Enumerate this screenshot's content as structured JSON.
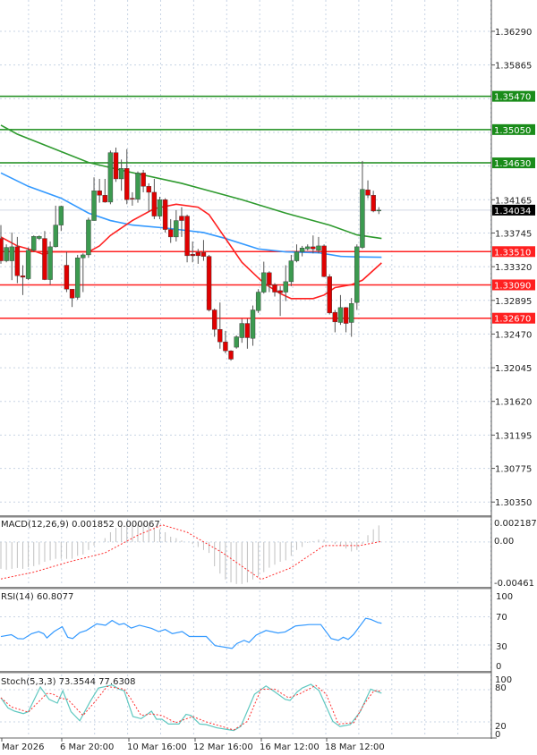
{
  "chart_data": {
    "type": "candlestick",
    "symbol_timeframe_hidden": false,
    "price_axis": {
      "ticks": [
        "1.36290",
        "1.35865",
        "1.34165",
        "1.33745",
        "1.33320",
        "1.32895",
        "1.32470",
        "1.32045",
        "1.31620",
        "1.31195",
        "1.30775",
        "1.30350"
      ],
      "range": [
        1.3005,
        1.3665
      ]
    },
    "current_price": {
      "label": "1.34034",
      "value": 1.34034,
      "color": "#000000"
    },
    "levels": [
      {
        "label": "1.35470",
        "value": 1.3547,
        "color": "#1a8c1a"
      },
      {
        "label": "1.35050",
        "value": 1.3505,
        "color": "#1a8c1a"
      },
      {
        "label": "1.34630",
        "value": 1.3463,
        "color": "#1a8c1a"
      },
      {
        "label": "1.33510",
        "value": 1.3351,
        "color": "#ff2020"
      },
      {
        "label": "1.33090",
        "value": 1.3309,
        "color": "#ff2020"
      },
      {
        "label": "1.32670",
        "value": 1.3267,
        "color": "#ff2020"
      }
    ],
    "ohlc": [
      [
        1.33676,
        1.33845,
        1.33356,
        1.33394
      ],
      [
        1.33394,
        1.33601,
        1.33375,
        1.33563
      ],
      [
        1.33394,
        1.33751,
        1.3315,
        1.33571
      ],
      [
        1.33571,
        1.33695,
        1.33112,
        1.33206
      ],
      [
        1.33206,
        1.33338,
        1.32962,
        1.33187
      ],
      [
        1.33168,
        1.33563,
        1.3315,
        1.33526
      ],
      [
        1.33526,
        1.33714,
        1.33507,
        1.33702
      ],
      [
        1.33676,
        1.33714,
        1.33657,
        1.33702
      ],
      [
        1.33676,
        1.3377,
        1.3315,
        1.33157
      ],
      [
        1.33157,
        1.33638,
        1.33093,
        1.33571
      ],
      [
        1.33571,
        1.3409,
        1.33563,
        1.33845
      ],
      [
        1.33845,
        1.3409,
        1.3377,
        1.34082
      ],
      [
        1.33338,
        1.33507,
        1.32999,
        1.33037
      ],
      [
        1.33037,
        1.33037,
        1.32811,
        1.32924
      ],
      [
        1.32932,
        1.33469,
        1.32905,
        1.33432
      ],
      [
        1.33432,
        1.33488,
        1.32999,
        1.33469
      ],
      [
        1.33469,
        1.33939,
        1.33432,
        1.33909
      ],
      [
        1.33902,
        1.34447,
        1.33902,
        1.34278
      ],
      [
        1.34278,
        1.34428,
        1.34127,
        1.34221
      ],
      [
        1.34221,
        1.34428,
        1.34127,
        1.34135
      ],
      [
        1.34135,
        1.34785,
        1.34108,
        1.34759
      ],
      [
        1.34759,
        1.34823,
        1.3439,
        1.34428
      ],
      [
        1.34428,
        1.34672,
        1.34278,
        1.3456
      ],
      [
        1.3456,
        1.34804,
        1.34108,
        1.34165
      ],
      [
        1.34184,
        1.34259,
        1.3409,
        1.34172
      ],
      [
        1.34172,
        1.34522,
        1.34127,
        1.34503
      ],
      [
        1.34503,
        1.34541,
        1.34259,
        1.34334
      ],
      [
        1.34334,
        1.34372,
        1.34014,
        1.34259
      ],
      [
        1.34259,
        1.34428,
        1.3392,
        1.33958
      ],
      [
        1.33958,
        1.34202,
        1.3392,
        1.34165
      ],
      [
        1.34165,
        1.34184,
        1.33751,
        1.33789
      ],
      [
        1.33789,
        1.3392,
        1.3362,
        1.33695
      ],
      [
        1.33695,
        1.34033,
        1.33638,
        1.33902
      ],
      [
        1.33958,
        1.34071,
        1.33695,
        1.33902
      ],
      [
        1.33958,
        1.33977,
        1.33375,
        1.33458
      ],
      [
        1.33477,
        1.33638,
        1.33375,
        1.33458
      ],
      [
        1.33499,
        1.33544,
        1.33356,
        1.33458
      ],
      [
        1.33499,
        1.33657,
        1.33394,
        1.3345
      ],
      [
        1.3345,
        1.33469,
        1.32755,
        1.32774
      ],
      [
        1.32774,
        1.32792,
        1.32435,
        1.32529
      ],
      [
        1.32529,
        1.32868,
        1.32285,
        1.32371
      ],
      [
        1.32371,
        1.3251,
        1.32228,
        1.32258
      ],
      [
        1.32258,
        1.32266,
        1.32134,
        1.32153
      ],
      [
        1.32304,
        1.32454,
        1.32285,
        1.32435
      ],
      [
        1.32424,
        1.32661,
        1.3236,
        1.32604
      ],
      [
        1.32604,
        1.32661,
        1.32285,
        1.32424
      ],
      [
        1.32416,
        1.3283,
        1.32322,
        1.32774
      ],
      [
        1.32766,
        1.33037,
        1.32736,
        1.32999
      ],
      [
        1.32999,
        1.33383,
        1.3298,
        1.33244
      ],
      [
        1.33244,
        1.33262,
        1.32999,
        1.33093
      ],
      [
        1.33093,
        1.33112,
        1.32943,
        1.32999
      ],
      [
        1.33018,
        1.33074,
        1.32698,
        1.32992
      ],
      [
        1.32999,
        1.33338,
        1.32886,
        1.33131
      ],
      [
        1.33131,
        1.33469,
        1.33074,
        1.33394
      ],
      [
        1.33394,
        1.33601,
        1.33375,
        1.33507
      ],
      [
        1.33507,
        1.33582,
        1.3345,
        1.33556
      ],
      [
        1.33544,
        1.33601,
        1.33526,
        1.33571
      ],
      [
        1.33571,
        1.33714,
        1.33488,
        1.33544
      ],
      [
        1.33526,
        1.33695,
        1.33488,
        1.33582
      ],
      [
        1.33582,
        1.33601,
        1.33187,
        1.33195
      ],
      [
        1.33195,
        1.33225,
        1.32717,
        1.32736
      ],
      [
        1.32744,
        1.32774,
        1.32492,
        1.32623
      ],
      [
        1.32616,
        1.32962,
        1.32586,
        1.32804
      ],
      [
        1.32804,
        1.32811,
        1.32492,
        1.32604
      ],
      [
        1.32616,
        1.32925,
        1.32435,
        1.32856
      ],
      [
        1.32868,
        1.33601,
        1.32774,
        1.33571
      ],
      [
        1.33563,
        1.34654,
        1.33544,
        1.34296
      ],
      [
        1.34289,
        1.34409,
        1.34184,
        1.34221
      ],
      [
        1.34221,
        1.34278,
        1.34007,
        1.34022
      ],
      [
        1.34033,
        1.34071,
        1.33984,
        1.34034
      ]
    ],
    "moving_averages": [
      {
        "color": "#2e9a2e",
        "points": [
          [
            0,
            1.35105
          ],
          [
            3,
            1.34992
          ],
          [
            16,
            1.34635
          ],
          [
            23,
            1.34522
          ],
          [
            33,
            1.34372
          ],
          [
            38,
            1.34278
          ],
          [
            44,
            1.34165
          ],
          [
            52,
            1.33996
          ],
          [
            60,
            1.33845
          ],
          [
            65,
            1.33721
          ],
          [
            69.5,
            1.33676
          ]
        ]
      },
      {
        "color": "#3399ff",
        "points": [
          [
            0,
            1.34503
          ],
          [
            5,
            1.34334
          ],
          [
            11,
            1.34184
          ],
          [
            16,
            1.33996
          ],
          [
            20,
            1.33902
          ],
          [
            24,
            1.33845
          ],
          [
            30,
            1.33808
          ],
          [
            37,
            1.33751
          ],
          [
            41,
            1.33676
          ],
          [
            47,
            1.33544
          ],
          [
            52,
            1.33507
          ],
          [
            58,
            1.33496
          ],
          [
            62,
            1.3345
          ],
          [
            65,
            1.33443
          ],
          [
            69.5,
            1.33439
          ]
        ]
      },
      {
        "color": "#ff2020",
        "points": [
          [
            0,
            1.33695
          ],
          [
            3,
            1.33582
          ],
          [
            5,
            1.33544
          ],
          [
            8,
            1.33469
          ],
          [
            9,
            1.33507
          ],
          [
            12,
            1.33507
          ],
          [
            16,
            1.33507
          ],
          [
            18,
            1.33582
          ],
          [
            20,
            1.33714
          ],
          [
            24,
            1.33902
          ],
          [
            28,
            1.34052
          ],
          [
            32,
            1.34108
          ],
          [
            36,
            1.34071
          ],
          [
            38,
            1.33977
          ],
          [
            41,
            1.33676
          ],
          [
            44,
            1.33375
          ],
          [
            48,
            1.33112
          ],
          [
            51,
            1.32981
          ],
          [
            53,
            1.32917
          ],
          [
            57,
            1.32917
          ],
          [
            59,
            1.32962
          ],
          [
            61,
            1.33056
          ],
          [
            64,
            1.33093
          ],
          [
            66,
            1.33149
          ],
          [
            69.5,
            1.33368
          ]
        ]
      }
    ],
    "time_axis": [
      "Mar 2026",
      "6 Mar 20:00",
      "10 Mar 16:00",
      "12 Mar 16:00",
      "16 Mar 12:00",
      "18 Mar 12:00"
    ],
    "macd": {
      "label": "MACD(12,26,9) 0.001852 0.000067",
      "ticks": [
        "0.002187",
        "0.00",
        "-0.00461"
      ],
      "range": [
        -0.00461,
        0.002187
      ],
      "histogram": [
        -0.003,
        -0.0031,
        -0.003,
        -0.0029,
        -0.003,
        -0.0028,
        -0.0027,
        -0.00254,
        -0.00221,
        -0.00205,
        -0.00188,
        -0.00188,
        -0.00188,
        -0.00188,
        -0.00155,
        -0.00139,
        -0.00089,
        -0.0004,
        0.0,
        0.00043,
        0.00109,
        0.00158,
        0.00175,
        0.00191,
        0.00191,
        0.00208,
        0.00208,
        0.00191,
        0.00158,
        0.00142,
        0.00109,
        0.00059,
        0.00043,
        0.00017,
        0.0,
        -0.00023,
        -0.00056,
        -0.00089,
        -0.00122,
        -0.00271,
        -0.00353,
        -0.00419,
        -0.00452,
        -0.00469,
        -0.00469,
        -0.00452,
        -0.00419,
        -0.00386,
        -0.00337,
        -0.00287,
        -0.00254,
        -0.00221,
        -0.00205,
        -0.00155,
        -0.00089,
        -0.00056,
        -0.0001,
        0.0001,
        0.00026,
        0.00026,
        0.0,
        -0.00023,
        -0.0004,
        -0.00073,
        -0.00106,
        -0.00089,
        -0.00023,
        0.00076,
        0.00142,
        0.00185
      ],
      "signal": [
        [
          0,
          -0.00413
        ],
        [
          6,
          -0.00337
        ],
        [
          12.5,
          -0.00221
        ],
        [
          19,
          -0.00122
        ],
        [
          25,
          0.00076
        ],
        [
          29.5,
          0.00191
        ],
        [
          34,
          0.00109
        ],
        [
          40.5,
          -0.00122
        ],
        [
          47.5,
          -0.00419
        ],
        [
          53,
          -0.00287
        ],
        [
          59,
          -0.0004
        ],
        [
          65.5,
          -0.0004
        ],
        [
          69.5,
          6.7e-05
        ]
      ],
      "histogram_color": "#c0c0c0",
      "signal_color": "#ff3030"
    },
    "rsi": {
      "label": "RSI(14) 60.8077",
      "ticks": [
        "100",
        "70",
        "30",
        "0"
      ],
      "range": [
        0,
        100
      ],
      "color": "#3399ff",
      "points": [
        [
          0,
          42
        ],
        [
          1.9,
          44.6
        ],
        [
          3.1,
          39
        ],
        [
          4.1,
          38.6
        ],
        [
          5.6,
          46
        ],
        [
          6.9,
          49
        ],
        [
          7.8,
          46
        ],
        [
          8.4,
          40
        ],
        [
          9.7,
          49
        ],
        [
          11.2,
          56
        ],
        [
          12.2,
          41
        ],
        [
          13.1,
          39
        ],
        [
          14.4,
          47.6
        ],
        [
          15.6,
          50.6
        ],
        [
          17.5,
          60
        ],
        [
          19.1,
          58
        ],
        [
          20.3,
          64.8
        ],
        [
          21.6,
          59
        ],
        [
          22.5,
          60.5
        ],
        [
          23.8,
          54
        ],
        [
          25.3,
          58
        ],
        [
          27.5,
          53.6
        ],
        [
          28.8,
          49
        ],
        [
          30,
          52
        ],
        [
          31.3,
          46
        ],
        [
          33.1,
          49
        ],
        [
          34.4,
          42
        ],
        [
          37.5,
          42
        ],
        [
          39.1,
          29
        ],
        [
          42.2,
          25
        ],
        [
          43.1,
          32
        ],
        [
          44.4,
          36.5
        ],
        [
          45.3,
          33.5
        ],
        [
          46.6,
          44
        ],
        [
          48.4,
          50.6
        ],
        [
          50.6,
          47
        ],
        [
          51.9,
          48.5
        ],
        [
          53.8,
          57
        ],
        [
          56.3,
          59
        ],
        [
          58.4,
          59
        ],
        [
          60.3,
          39
        ],
        [
          61.6,
          36.5
        ],
        [
          62.5,
          41
        ],
        [
          63.4,
          37.8
        ],
        [
          64.4,
          45
        ],
        [
          66.6,
          68
        ],
        [
          67.5,
          66.5
        ],
        [
          68.8,
          62
        ],
        [
          69.5,
          60.8
        ]
      ]
    },
    "stoch": {
      "label": "Stoch(5,3,3) 73.3544 77.6308",
      "ticks": [
        "100",
        "80",
        "20",
        "0"
      ],
      "range": [
        0,
        100
      ],
      "main_color": "#5fc8c0",
      "signal_color": "#ff3030",
      "main": [
        [
          0,
          65
        ],
        [
          1.3,
          46
        ],
        [
          2.5,
          40
        ],
        [
          4.1,
          35.5
        ],
        [
          5,
          39
        ],
        [
          7.2,
          85
        ],
        [
          8.8,
          62
        ],
        [
          10.3,
          55
        ],
        [
          11.3,
          78
        ],
        [
          12.8,
          39
        ],
        [
          14.4,
          22
        ],
        [
          16.3,
          58
        ],
        [
          17.8,
          83
        ],
        [
          19.1,
          86
        ],
        [
          20.3,
          89
        ],
        [
          21.6,
          81
        ],
        [
          22.5,
          78
        ],
        [
          24.1,
          30
        ],
        [
          25.6,
          26
        ],
        [
          27.5,
          40
        ],
        [
          28.4,
          25
        ],
        [
          29.4,
          25
        ],
        [
          30.6,
          16
        ],
        [
          32.5,
          16
        ],
        [
          33.8,
          34
        ],
        [
          34.7,
          32
        ],
        [
          36.3,
          16
        ],
        [
          37.5,
          15
        ],
        [
          39.4,
          9
        ],
        [
          42.5,
          4
        ],
        [
          43.8,
          11.5
        ],
        [
          46.3,
          71.5
        ],
        [
          48.4,
          87
        ],
        [
          50,
          76
        ],
        [
          51.9,
          62
        ],
        [
          52.8,
          60
        ],
        [
          54.1,
          76
        ],
        [
          55,
          83
        ],
        [
          56.6,
          90
        ],
        [
          58.1,
          78
        ],
        [
          60.6,
          21
        ],
        [
          61.9,
          11.5
        ],
        [
          63.8,
          15
        ],
        [
          65.6,
          39
        ],
        [
          67.5,
          81
        ],
        [
          69.5,
          73.4
        ]
      ],
      "signal": [
        [
          0,
          65
        ],
        [
          1.9,
          48
        ],
        [
          5,
          38
        ],
        [
          8.4,
          73
        ],
        [
          9.4,
          72.5
        ],
        [
          10.9,
          64
        ],
        [
          12.2,
          62
        ],
        [
          15,
          32
        ],
        [
          17.2,
          58
        ],
        [
          19.4,
          86
        ],
        [
          22.5,
          81
        ],
        [
          23.8,
          62
        ],
        [
          25.6,
          32
        ],
        [
          27.5,
          35
        ],
        [
          29.4,
          32
        ],
        [
          31.9,
          18.5
        ],
        [
          35,
          30
        ],
        [
          37.5,
          20
        ],
        [
          42.5,
          5
        ],
        [
          45,
          21
        ],
        [
          47.5,
          81
        ],
        [
          50,
          81
        ],
        [
          52.5,
          65
        ],
        [
          54.4,
          71.5
        ],
        [
          57.5,
          88
        ],
        [
          59.4,
          71.5
        ],
        [
          61.6,
          16
        ],
        [
          64.4,
          18.5
        ],
        [
          66.3,
          53
        ],
        [
          68.1,
          78
        ],
        [
          69.5,
          77.6
        ]
      ]
    },
    "candle_colors": {
      "up": "#3c9a50",
      "down": "#e00000"
    },
    "grid": true
  }
}
